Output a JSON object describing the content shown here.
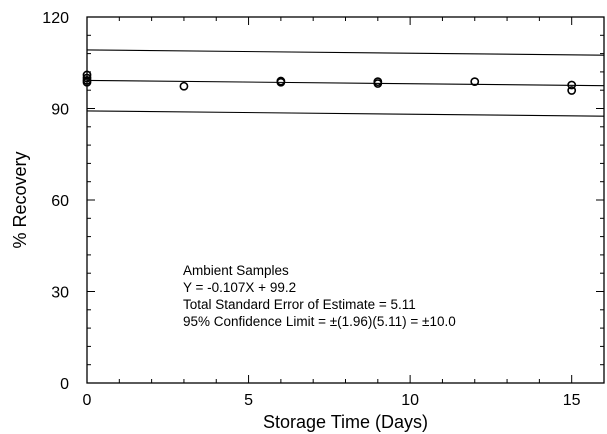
{
  "chart_data": {
    "type": "scatter",
    "xlabel": "Storage Time (Days)",
    "ylabel": "% Recovery",
    "xlim": [
      0,
      16
    ],
    "ylim": [
      0,
      120
    ],
    "xticks": [
      0,
      5,
      10,
      15
    ],
    "yticks": [
      0,
      30,
      60,
      90,
      120
    ],
    "x_minor_step": 1,
    "y_minor_step": 6,
    "grid": false,
    "marker": "open-circle",
    "series": [
      {
        "points": [
          {
            "x": 0,
            "y": 101.0
          },
          {
            "x": 0,
            "y": 100.0
          },
          {
            "x": 0,
            "y": 99.2
          },
          {
            "x": 0,
            "y": 98.6
          },
          {
            "x": 3,
            "y": 97.3
          },
          {
            "x": 6,
            "y": 99.0
          },
          {
            "x": 6,
            "y": 98.6
          },
          {
            "x": 9,
            "y": 98.8
          },
          {
            "x": 9,
            "y": 98.2
          },
          {
            "x": 12,
            "y": 98.8
          },
          {
            "x": 15,
            "y": 97.7
          },
          {
            "x": 15,
            "y": 95.9
          }
        ]
      }
    ],
    "regression": {
      "slope": -0.107,
      "intercept": 99.2,
      "confidence_limit": 10.0
    },
    "annotations": [
      "Ambient Samples",
      "Y = -0.107X + 99.2",
      "Total Standard Error of Estimate = 5.11",
      "95% Confidence Limit = ±(1.96)(5.11) = ±10.0"
    ]
  }
}
